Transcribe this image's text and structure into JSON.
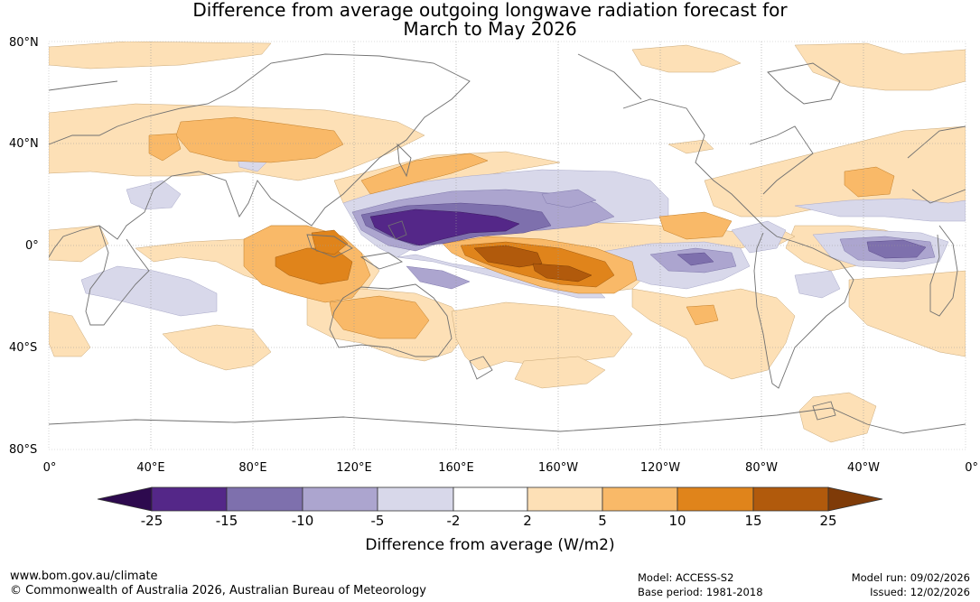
{
  "title": {
    "line1": "Difference from average outgoing longwave radiation forecast for",
    "line2": "March to May 2026"
  },
  "map": {
    "latitude_labels": [
      "80°N",
      "40°N",
      "0°",
      "40°S",
      "80°S"
    ],
    "longitude_labels": [
      "0°",
      "40°E",
      "80°E",
      "120°E",
      "160°E",
      "160°W",
      "120°W",
      "80°W",
      "40°W",
      "0°"
    ],
    "colors": {
      "plus_2_to_5": "#fde0b6",
      "plus_5_to_10": "#f9b968",
      "plus_10_to_15": "#e0841b",
      "plus_15_to_25": "#b15a0c",
      "minus_2_to_5": "#d8d8ea",
      "minus_5_to_10": "#aca5cf",
      "minus_10_to_15": "#7e70ad",
      "minus_15_to_25": "#542788",
      "coastline": "#707070",
      "gridline": "#999999"
    }
  },
  "colorbar": {
    "tick_labels": [
      "-25",
      "-15",
      "-10",
      "-5",
      "-2",
      "2",
      "5",
      "10",
      "15",
      "25"
    ],
    "colors": [
      "#2d0a4e",
      "#542788",
      "#7e70ad",
      "#aca5cf",
      "#d8d8ea",
      "#ffffff",
      "#fde0b6",
      "#f9b968",
      "#e0841b",
      "#b15a0c",
      "#7f3b08"
    ],
    "title": "Difference from average (W/m2)"
  },
  "footer": {
    "website": "www.bom.gov.au/climate",
    "copyright": "© Commonwealth of Australia 2026, Australian Bureau of Meteorology",
    "model": "Model: ACCESS-S2",
    "base_period": "Base period: 1981-2018",
    "model_run": "Model run: 09/02/2026",
    "issued": "Issued: 12/02/2026"
  }
}
